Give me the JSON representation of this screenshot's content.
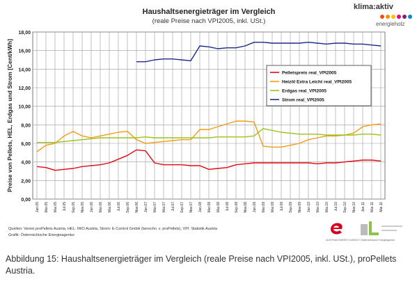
{
  "header": {
    "title": "Haushaltsenergieträger im Vergleich",
    "subtitle": "(reale Preise nach VPI2005, inkl. USt.)"
  },
  "logo": {
    "name": "klima:aktiv",
    "sub": "energieholz",
    "dot_colors": [
      "#e94e1b",
      "#f39200",
      "#fcc300",
      "#e6007e",
      "#7b2281",
      "#008bd2"
    ]
  },
  "sources": {
    "line1": "Quellen: Verein proPellets Austria, HEL: IWO Austria, Strom: E-Control GmbH (berechn. v. proPellets), VPI: Statistik Austria",
    "line2": "Grafik: Österreichische Energieagentur"
  },
  "partner_logos": {
    "left_label": "AUSTRIAN ENERGY AGENCY",
    "right_label": "Österreichische Energieagentur"
  },
  "caption": "Abbildung 15: Haushaltsenergieträger im Vergleich (reale Preise nach VPI2005, inkl. USt.), proPellets Austria.",
  "chart_data": {
    "type": "line",
    "title": "Haushaltsenergieträger im Vergleich",
    "subtitle": "(reale Preise nach VPI2005, inkl. USt.)",
    "ylabel": "Preise von Pellets, HEL, Erdgas und Strom [Cent/kWh]",
    "ylim": [
      0,
      18
    ],
    "yticks": [
      "0,00",
      "2,00",
      "4,00",
      "6,00",
      "8,00",
      "10,00",
      "12,00",
      "14,00",
      "16,00",
      "18,00"
    ],
    "grid": true,
    "legend_position": "right",
    "x": [
      "Jan.05",
      "Mar.05",
      "Mai.05",
      "Jul.05",
      "Sep.05",
      "Nov.05",
      "Jan.06",
      "Mar.06",
      "Mai.06",
      "Jul.06",
      "Sep.06",
      "Nov.06",
      "Jan.07",
      "Mar.07",
      "Mai.07",
      "Jul.07",
      "Sep.07",
      "Nov.07",
      "Jan.08",
      "Mar.08",
      "Mai.08",
      "Jul.08",
      "Sep.08",
      "Nov.08",
      "Jan.09",
      "Mar.09",
      "Mai.09",
      "Jul.09",
      "Sep.09",
      "Nov.09",
      "Jan.10",
      "Mar.10",
      "Mai.10",
      "Jul.10",
      "Sep.10",
      "Nov.10",
      "Jan.11",
      "Mar.11",
      "Mai.11"
    ],
    "series": [
      {
        "name": "Pelletspreis real_VPI2005",
        "color": "#e30613",
        "values": [
          3.5,
          3.4,
          3.1,
          3.2,
          3.3,
          3.5,
          3.6,
          3.7,
          3.9,
          4.3,
          4.7,
          5.3,
          5.2,
          3.9,
          3.7,
          3.7,
          3.7,
          3.6,
          3.6,
          3.2,
          3.3,
          3.4,
          3.7,
          3.8,
          3.9,
          3.9,
          3.9,
          3.9,
          3.9,
          3.9,
          3.9,
          3.8,
          3.9,
          3.9,
          4.0,
          4.1,
          4.2,
          4.2,
          4.1
        ]
      },
      {
        "name": "Heizöl Extra Leicht real_VPI2005",
        "color": "#f39c12",
        "values": [
          5.1,
          5.8,
          6.0,
          6.8,
          7.3,
          6.8,
          6.6,
          6.8,
          7.0,
          7.2,
          7.3,
          6.4,
          6.0,
          6.1,
          6.2,
          6.3,
          6.4,
          6.4,
          7.5,
          7.5,
          7.8,
          8.1,
          8.4,
          8.4,
          8.3,
          5.7,
          5.6,
          5.6,
          5.8,
          6.0,
          6.4,
          6.6,
          6.8,
          6.8,
          6.9,
          7.1,
          7.8,
          8.0,
          8.1
        ]
      },
      {
        "name": "Erdgas real_VPI2005",
        "color": "#9ac31c",
        "values": [
          6.1,
          6.1,
          6.1,
          6.2,
          6.3,
          6.4,
          6.5,
          6.6,
          6.6,
          6.6,
          6.6,
          6.6,
          6.7,
          6.6,
          6.6,
          6.6,
          6.6,
          6.6,
          6.6,
          6.6,
          6.7,
          6.7,
          6.7,
          6.7,
          6.8,
          7.6,
          7.4,
          7.2,
          7.1,
          7.0,
          7.0,
          7.0,
          6.9,
          6.9,
          6.9,
          6.9,
          7.0,
          7.0,
          6.9
        ]
      },
      {
        "name": "Strom real_VPI2005",
        "color": "#1d2a8c",
        "values": [
          null,
          null,
          null,
          null,
          null,
          null,
          null,
          null,
          null,
          null,
          null,
          14.8,
          14.8,
          15.0,
          15.1,
          15.1,
          15.0,
          14.9,
          16.5,
          16.4,
          16.2,
          16.3,
          16.3,
          16.5,
          16.9,
          16.9,
          16.8,
          16.8,
          16.8,
          16.8,
          16.9,
          16.8,
          16.7,
          16.8,
          16.8,
          16.7,
          16.7,
          16.6,
          16.5
        ]
      }
    ]
  }
}
